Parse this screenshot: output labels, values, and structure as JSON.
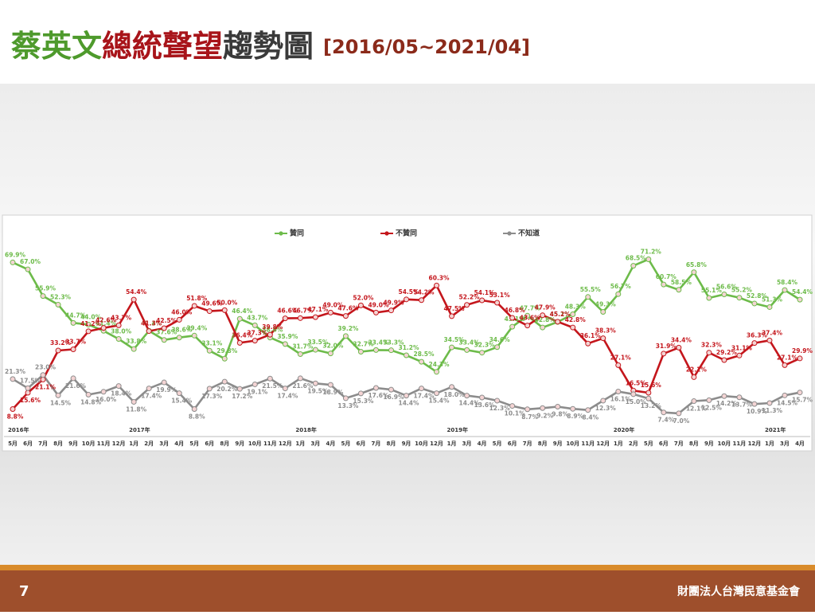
{
  "slide": {
    "title_parts": [
      "蔡英文",
      "總統聲望",
      "趨勢圖"
    ],
    "title_colors": [
      "#4e9a2c",
      "#a8141a",
      "#3a3a3a"
    ],
    "date_range": "[2016/05~2021/04]",
    "page_number": "7",
    "organization": "財團法人台灣民意基金會"
  },
  "chart_data": {
    "type": "line",
    "legend": "top",
    "years": [
      "2016年",
      "2017年",
      "2018年",
      "2019年",
      "2020年",
      "2021年"
    ],
    "categories": [
      "5月",
      "6月",
      "7月",
      "8月",
      "9月",
      "10月",
      "11月",
      "12月",
      "1月",
      "2月",
      "3月",
      "4月",
      "5月",
      "6月",
      "8月",
      "9月",
      "10月",
      "11月",
      "12月",
      "1月",
      "3月",
      "4月",
      "5月",
      "6月",
      "7月",
      "8月",
      "9月",
      "10月",
      "12月",
      "1月",
      "3月",
      "4月",
      "5月",
      "6月",
      "7月",
      "8月",
      "9月",
      "10月",
      "11月",
      "12月",
      "1月",
      "2月",
      "5月",
      "6月",
      "7月",
      "8月",
      "9月",
      "10月",
      "11月",
      "12月",
      "1月",
      "3月",
      "4月"
    ],
    "ylim": [
      0,
      80
    ],
    "series": [
      {
        "name": "贊同",
        "color": "#6dbb4a",
        "values": [
          69.9,
          67.0,
          55.9,
          52.3,
          44.7,
          44.0,
          41.4,
          38.0,
          33.8,
          41.4,
          37.6,
          38.6,
          39.4,
          33.1,
          29.8,
          46.4,
          43.7,
          38.6,
          35.9,
          31.7,
          33.5,
          32.0,
          39.2,
          32.7,
          33.4,
          33.3,
          31.2,
          28.5,
          24.3,
          34.5,
          33.4,
          32.3,
          34.6,
          43.1,
          47.7,
          42.8,
          45.1,
          48.3,
          55.5,
          49.3,
          56.7,
          68.5,
          71.2,
          60.7,
          58.5,
          65.8,
          55.1,
          56.6,
          55.2,
          52.8,
          51.3,
          58.4,
          54.4
        ],
        "value_labels": [
          "69.9%",
          "67.0%",
          "55.9%",
          "52.3%",
          "44.7%",
          "44.0%",
          "41.4%",
          "38.0%",
          "33.8%",
          "41.4%",
          "37.6%",
          "38.6%",
          "39.4%",
          "33.1%",
          "29.8%",
          "46.4%",
          "43.7%",
          "38.6%",
          "35.9%",
          "31.7%",
          "33.5%",
          "32.0%",
          "39.2%",
          "32.7%",
          "33.4%",
          "33.3%",
          "31.2%",
          "28.5%",
          "24.3%",
          "34.5%",
          "33.4%",
          "32.3%",
          "34.6%",
          "43.1%",
          "47.7%",
          "42.8%",
          "45.1%",
          "48.3%",
          "55.5%",
          "49.3%",
          "56.7%",
          "68.5%",
          "71.2%",
          "60.7%",
          "58.5%",
          "65.8%",
          "55.1%",
          "56.6%",
          "55.2%",
          "52.8%",
          "51.3%",
          "58.4%",
          "54.4%"
        ]
      },
      {
        "name": "不贊同",
        "color": "#c4161c",
        "values": [
          8.8,
          15.6,
          21.1,
          33.2,
          33.7,
          41.2,
          42.6,
          43.7,
          54.4,
          41.3,
          42.5,
          46.0,
          51.8,
          49.6,
          50.0,
          36.4,
          37.3,
          39.8,
          46.6,
          46.7,
          47.1,
          49.0,
          47.6,
          52.0,
          49.0,
          49.9,
          54.5,
          54.2,
          60.3,
          47.5,
          52.2,
          54.1,
          53.1,
          46.8,
          43.6,
          47.9,
          45.2,
          42.8,
          36.1,
          38.3,
          27.1,
          16.5,
          15.6,
          31.9,
          34.4,
          22.1,
          32.3,
          29.2,
          31.1,
          36.3,
          37.4,
          27.1,
          29.9
        ],
        "value_labels": [
          "8.8%",
          "15.6%",
          "21.1%",
          "33.2%",
          "33.7%",
          "41.2%",
          "42.6%",
          "43.7%",
          "54.4%",
          "41.3%",
          "42.5%",
          "46.0%",
          "51.8%",
          "49.6%",
          "50.0%",
          "36.4%",
          "37.3%",
          "39.8%",
          "46.6%",
          "46.7%",
          "47.1%",
          "49.0%",
          "47.6%",
          "52.0%",
          "49.0%",
          "49.9%",
          "54.5%",
          "54.2%",
          "60.3%",
          "47.5%",
          "52.2%",
          "54.1%",
          "53.1%",
          "46.8%",
          "43.6%",
          "47.9%",
          "45.2%",
          "42.8%",
          "36.1%",
          "38.3%",
          "27.1%",
          "16.5%",
          "15.6%",
          "31.9%",
          "34.4%",
          "22.1%",
          "32.3%",
          "29.2%",
          "31.1%",
          "36.3%",
          "37.4%",
          "27.1%",
          "29.9%"
        ]
      },
      {
        "name": "不知道",
        "color": "#8c8c8c",
        "values": [
          21.3,
          17.5,
          23.0,
          14.5,
          21.6,
          14.8,
          16.0,
          18.4,
          11.8,
          17.4,
          19.9,
          15.4,
          8.8,
          17.3,
          20.2,
          17.2,
          19.1,
          21.5,
          17.4,
          21.6,
          19.5,
          18.9,
          13.3,
          15.3,
          17.6,
          16.9,
          14.4,
          17.4,
          15.4,
          18.0,
          14.4,
          13.6,
          12.3,
          10.1,
          8.7,
          9.2,
          9.8,
          8.9,
          8.4,
          12.3,
          16.1,
          15.0,
          13.2,
          7.4,
          7.0,
          12.1,
          12.5,
          14.2,
          13.7,
          10.9,
          11.3,
          14.5,
          15.7
        ],
        "value_labels": [
          "21.3%",
          "17.5%",
          "23.0%",
          "14.5%",
          "21.6%",
          "14.8%",
          "16.0%",
          "18.4%",
          "11.8%",
          "17.4%",
          "19.9%",
          "15.4%",
          "8.8%",
          "17.3%",
          "20.2%",
          "17.2%",
          "19.1%",
          "21.5%",
          "17.4%",
          "21.6%",
          "19.5%",
          "18.9%",
          "13.3%",
          "15.3%",
          "17.6%",
          "16.9%",
          "14.4%",
          "17.4%",
          "15.4%",
          "18.0%",
          "14.4%",
          "13.6%",
          "12.3%",
          "10.1%",
          "8.7%",
          "9.2%",
          "9.8%",
          "8.9%",
          "8.4%",
          "12.3%",
          "16.1%",
          "15.0%",
          "13.2%",
          "7.4%",
          "7.0%",
          "12.1%",
          "12.5%",
          "14.2%",
          "13.7%",
          "10.9%",
          "11.3%",
          "14.5%",
          "15.7%"
        ]
      }
    ]
  }
}
